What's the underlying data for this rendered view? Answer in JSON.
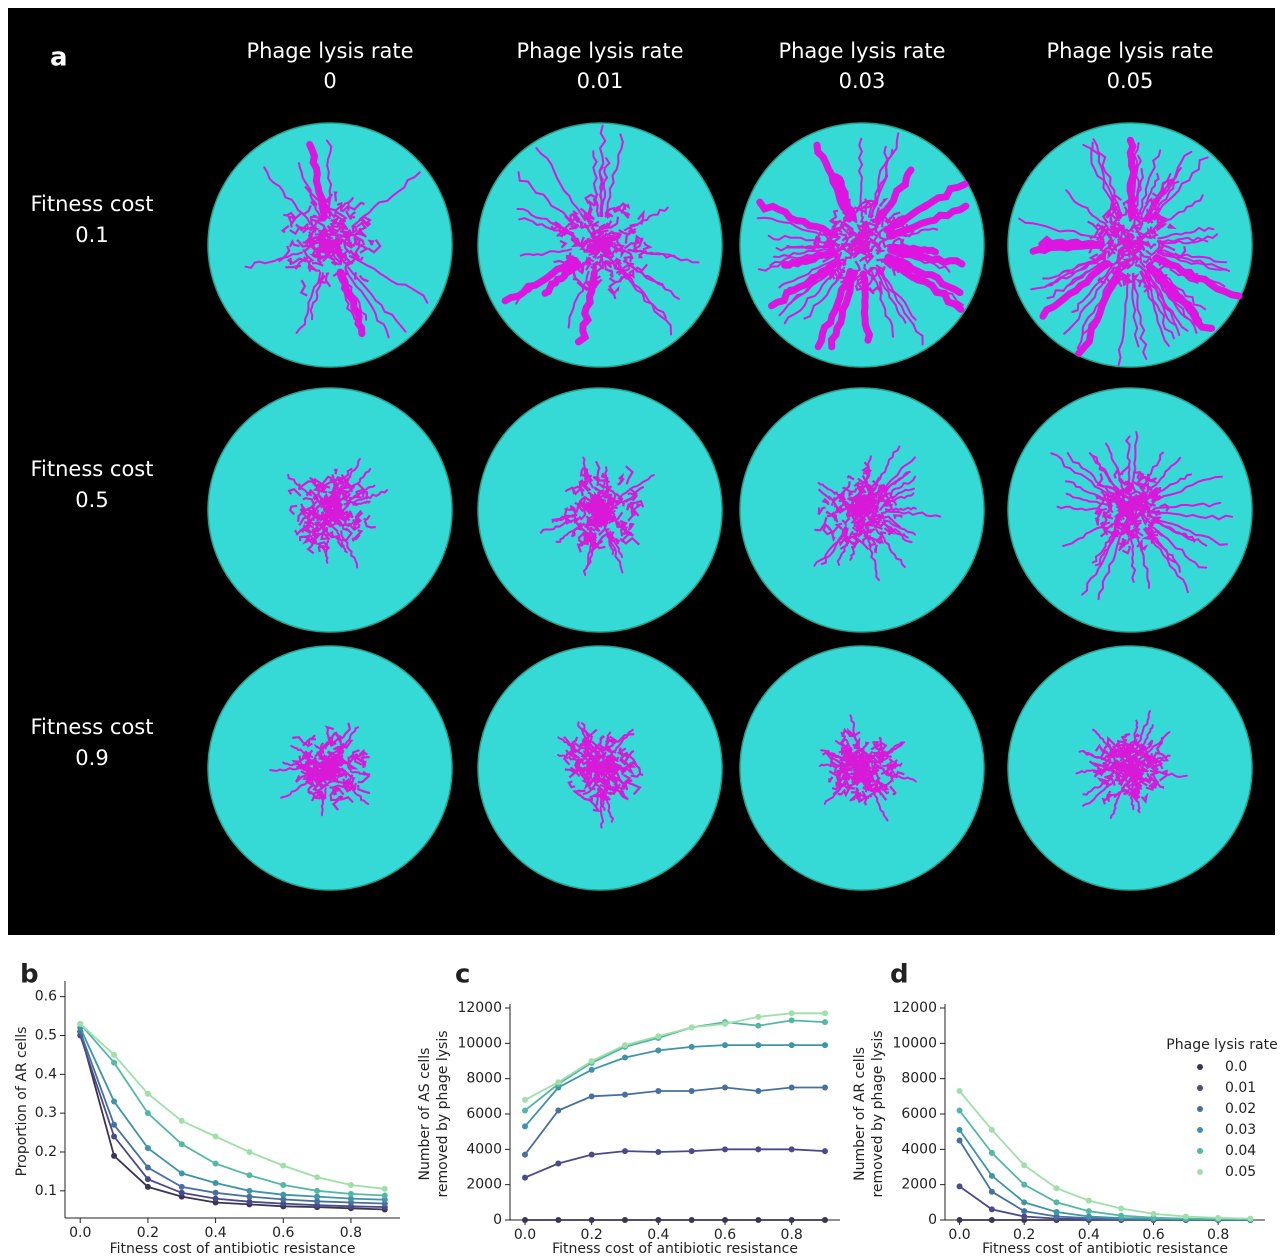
{
  "panel_a": {
    "label": "a",
    "columns": [
      {
        "title": "Phage lysis rate",
        "value": "0"
      },
      {
        "title": "Phage lysis rate",
        "value": "0.01"
      },
      {
        "title": "Phage lysis rate",
        "value": "0.03"
      },
      {
        "title": "Phage lysis rate",
        "value": "0.05"
      }
    ],
    "rows": [
      {
        "title": "Fitness cost",
        "value": "0.1"
      },
      {
        "title": "Fitness cost",
        "value": "0.5"
      },
      {
        "title": "Fitness cost",
        "value": "0.9"
      }
    ]
  },
  "chart_data": [
    {
      "type": "line",
      "panel": "b",
      "ylabel": [
        "Proportion of AR cells"
      ],
      "xlabel": "Fitness cost of antibiotic resistance",
      "x": [
        0,
        0.1,
        0.2,
        0.3,
        0.4,
        0.5,
        0.6,
        0.7,
        0.8,
        0.9
      ],
      "xlim": [
        -0.045,
        0.945
      ],
      "xticks": [
        {
          "value": 0,
          "label": "0.0"
        },
        0.2,
        0.4,
        0.6,
        0.8
      ],
      "ylim": [
        0.03,
        0.63
      ],
      "yticks": [
        0.1,
        0.2,
        0.3,
        0.4,
        0.5,
        0.6
      ],
      "series": [
        {
          "color": "#3b3553",
          "values": [
            0.51,
            0.19,
            0.11,
            0.085,
            0.07,
            0.065,
            0.06,
            0.058,
            0.055,
            0.052
          ]
        },
        {
          "color": "#4a4a8a",
          "values": [
            0.5,
            0.24,
            0.13,
            0.095,
            0.08,
            0.072,
            0.067,
            0.063,
            0.06,
            0.058
          ]
        },
        {
          "color": "#4670a0",
          "values": [
            0.51,
            0.27,
            0.16,
            0.11,
            0.095,
            0.085,
            0.078,
            0.073,
            0.07,
            0.067
          ]
        },
        {
          "color": "#3e94a8",
          "values": [
            0.52,
            0.33,
            0.21,
            0.145,
            0.12,
            0.1,
            0.09,
            0.085,
            0.08,
            0.077
          ]
        },
        {
          "color": "#52b8a4",
          "values": [
            0.53,
            0.43,
            0.3,
            0.22,
            0.17,
            0.14,
            0.115,
            0.1,
            0.092,
            0.088
          ]
        },
        {
          "color": "#9ee0a8",
          "values": [
            0.53,
            0.45,
            0.35,
            0.28,
            0.24,
            0.2,
            0.165,
            0.135,
            0.115,
            0.105
          ]
        }
      ]
    },
    {
      "type": "line",
      "panel": "c",
      "ylabel": [
        "Number of AS cells",
        "removed by phage lysis"
      ],
      "xlabel": "Fitness cost of antibiotic resistance",
      "x": [
        0,
        0.1,
        0.2,
        0.3,
        0.4,
        0.5,
        0.6,
        0.7,
        0.8,
        0.9
      ],
      "xlim": [
        -0.045,
        0.945
      ],
      "xticks": [
        {
          "value": 0,
          "label": "0.0"
        },
        0.2,
        0.4,
        0.6,
        0.8
      ],
      "ylim": [
        0,
        12000
      ],
      "yticks": [
        0,
        2000,
        4000,
        6000,
        8000,
        10000,
        12000
      ],
      "series": [
        {
          "color": "#3b3553",
          "values": [
            0,
            0,
            0,
            0,
            0,
            0,
            0,
            0,
            0,
            0
          ]
        },
        {
          "color": "#4a4a8a",
          "values": [
            2400,
            3200,
            3700,
            3900,
            3850,
            3900,
            4000,
            4000,
            4000,
            3900
          ]
        },
        {
          "color": "#4670a0",
          "values": [
            3700,
            6200,
            7000,
            7100,
            7300,
            7300,
            7500,
            7300,
            7500,
            7500
          ]
        },
        {
          "color": "#3e94a8",
          "values": [
            5300,
            7500,
            8500,
            9200,
            9600,
            9800,
            9900,
            9900,
            9900,
            9900
          ]
        },
        {
          "color": "#52b8a4",
          "values": [
            6200,
            7700,
            8900,
            9800,
            10300,
            10900,
            11200,
            11000,
            11300,
            11200
          ]
        },
        {
          "color": "#9ee0a8",
          "values": [
            6800,
            7800,
            9000,
            9900,
            10400,
            10900,
            11100,
            11500,
            11700,
            11700
          ]
        }
      ]
    },
    {
      "type": "line",
      "panel": "d",
      "ylabel": [
        "Number of AR cells",
        "removed by phage lysis"
      ],
      "xlabel": "Fitness cost of antibiotic resistance",
      "x": [
        0,
        0.1,
        0.2,
        0.3,
        0.4,
        0.5,
        0.6,
        0.7,
        0.8,
        0.9
      ],
      "xlim": [
        -0.045,
        0.945
      ],
      "xticks": [
        {
          "value": 0,
          "label": "0.0"
        },
        0.2,
        0.4,
        0.6,
        0.8
      ],
      "ylim": [
        0,
        12000
      ],
      "yticks": [
        0,
        2000,
        4000,
        6000,
        8000,
        10000,
        12000
      ],
      "legend": "right",
      "legend_title": "Phage lysis rate",
      "series": [
        {
          "name": "0.0",
          "color": "#3b3553",
          "values": [
            0,
            0,
            0,
            0,
            0,
            0,
            0,
            0,
            0,
            0
          ]
        },
        {
          "name": "0.01",
          "color": "#4a4a8a",
          "values": [
            1900,
            600,
            200,
            80,
            40,
            20,
            10,
            5,
            5,
            5
          ]
        },
        {
          "name": "0.02",
          "color": "#4670a0",
          "values": [
            4500,
            1600,
            500,
            200,
            100,
            50,
            30,
            20,
            10,
            10
          ]
        },
        {
          "name": "0.03",
          "color": "#3e94a8",
          "values": [
            5100,
            2500,
            1000,
            450,
            200,
            100,
            60,
            40,
            30,
            20
          ]
        },
        {
          "name": "0.04",
          "color": "#52b8a4",
          "values": [
            6200,
            3800,
            2000,
            1000,
            500,
            250,
            130,
            80,
            50,
            40
          ]
        },
        {
          "name": "0.05",
          "color": "#9ee0a8",
          "values": [
            7300,
            5100,
            3100,
            1800,
            1100,
            650,
            350,
            200,
            120,
            80
          ]
        }
      ]
    }
  ]
}
